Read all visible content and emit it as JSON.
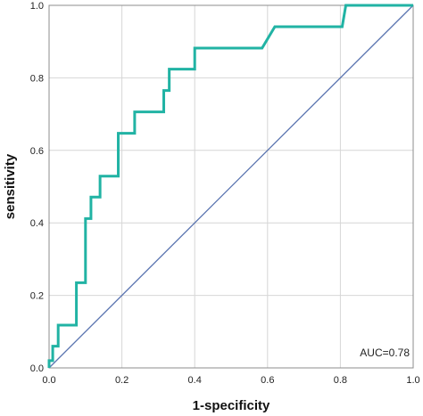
{
  "chart_data": {
    "type": "line",
    "xlabel": "1-specificity",
    "ylabel": "sensitivity",
    "xlim": [
      0,
      1
    ],
    "ylim": [
      0,
      1
    ],
    "x_ticks": [
      "0.0",
      "0.2",
      "0.4",
      "0.6",
      "0.8",
      "1.0"
    ],
    "y_ticks": [
      "0.0",
      "0.2",
      "0.4",
      "0.6",
      "0.8",
      "1.0"
    ],
    "grid": true,
    "annotation": "AUC=0.78",
    "series": [
      {
        "color": "#21b3a4",
        "x": [
          0.0,
          0.0,
          0.01,
          0.01,
          0.025,
          0.025,
          0.075,
          0.075,
          0.1,
          0.1,
          0.115,
          0.115,
          0.14,
          0.14,
          0.19,
          0.19,
          0.235,
          0.235,
          0.315,
          0.315,
          0.33,
          0.33,
          0.345,
          0.345,
          0.4,
          0.4,
          0.585,
          0.62,
          0.805,
          0.815,
          1.0
        ],
        "y": [
          0.0,
          0.02,
          0.02,
          0.06,
          0.06,
          0.118,
          0.118,
          0.235,
          0.235,
          0.412,
          0.412,
          0.471,
          0.471,
          0.529,
          0.529,
          0.647,
          0.647,
          0.706,
          0.706,
          0.765,
          0.765,
          0.824,
          0.824,
          0.824,
          0.824,
          0.882,
          0.882,
          0.941,
          0.941,
          1.0,
          1.0
        ]
      },
      {
        "color": "#5a74b0",
        "x": [
          0,
          1
        ],
        "y": [
          0,
          1
        ]
      }
    ]
  }
}
